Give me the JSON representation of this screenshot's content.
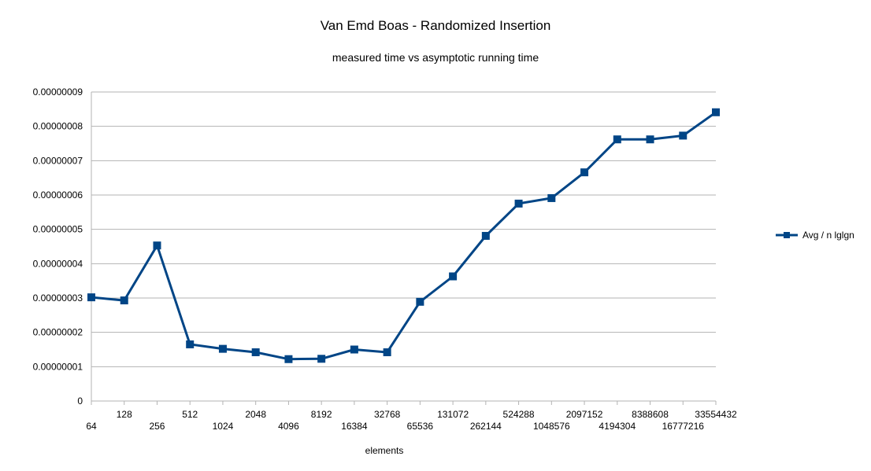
{
  "chart_data": {
    "type": "line",
    "title": "Van Emd Boas - Randomized Insertion",
    "subtitle": "measured time vs asymptotic running time",
    "xlabel": "elements",
    "ylabel": "",
    "categories": [
      "64",
      "128",
      "256",
      "512",
      "1024",
      "2048",
      "4096",
      "8192",
      "16384",
      "32768",
      "65536",
      "131072",
      "262144",
      "524288",
      "1048576",
      "2097152",
      "4194304",
      "8388608",
      "16777216",
      "33554432"
    ],
    "series": [
      {
        "name": "Avg / n lglgn",
        "color": "#004586",
        "values": [
          3.02e-08,
          2.93e-08,
          4.53e-08,
          1.65e-08,
          1.52e-08,
          1.42e-08,
          1.22e-08,
          1.23e-08,
          1.5e-08,
          1.42e-08,
          2.89e-08,
          3.63e-08,
          4.81e-08,
          5.75e-08,
          5.91e-08,
          6.66e-08,
          7.62e-08,
          7.62e-08,
          7.73e-08,
          8.41e-08
        ]
      }
    ],
    "yticks": [
      "0",
      "0.00000001",
      "0.00000002",
      "0.00000003",
      "0.00000004",
      "0.00000005",
      "0.00000006",
      "0.00000007",
      "0.00000008",
      "0.00000009"
    ],
    "ylim": [
      0,
      9e-08
    ],
    "grid": true,
    "legend": "right"
  }
}
